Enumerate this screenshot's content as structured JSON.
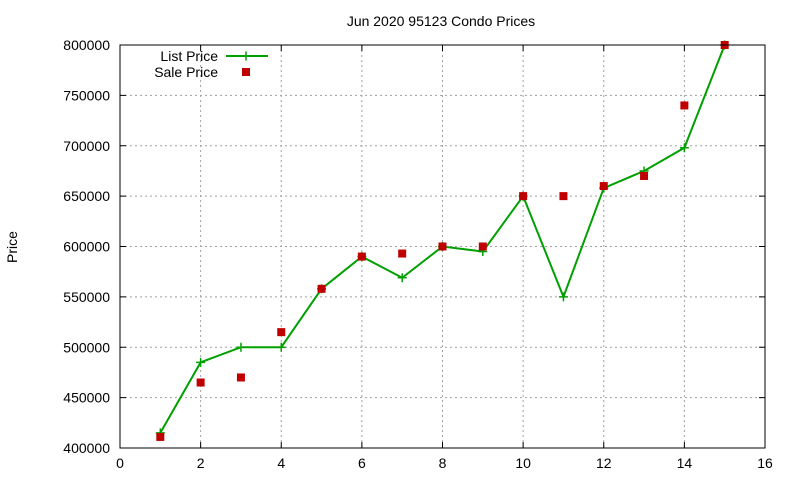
{
  "chart_data": {
    "type": "line",
    "title": "Jun 2020 95123 Condo Prices",
    "xlabel": "",
    "ylabel": "Price",
    "xlim": [
      0,
      16
    ],
    "ylim": [
      400000,
      800000
    ],
    "xticks": [
      0,
      2,
      4,
      6,
      8,
      10,
      12,
      14,
      16
    ],
    "yticks": [
      400000,
      450000,
      500000,
      550000,
      600000,
      650000,
      700000,
      750000,
      800000
    ],
    "grid": true,
    "legend_position": "top-left",
    "series": [
      {
        "name": "List Price",
        "style": "line-with-plus-markers",
        "color": "#00a000",
        "x": [
          1,
          2,
          3,
          4,
          5,
          6,
          7,
          8,
          9,
          10,
          11,
          12,
          13,
          14,
          15
        ],
        "y": [
          415000,
          485000,
          500000,
          500000,
          558000,
          590000,
          569000,
          600000,
          595000,
          650000,
          550000,
          658000,
          675000,
          698000,
          800000
        ]
      },
      {
        "name": "Sale Price",
        "style": "square-markers",
        "color": "#c00000",
        "x": [
          1,
          2,
          3,
          4,
          5,
          6,
          7,
          8,
          9,
          10,
          11,
          12,
          13,
          14,
          15
        ],
        "y": [
          411000,
          465000,
          470000,
          515000,
          558000,
          590000,
          593000,
          600000,
          600000,
          650000,
          650000,
          660000,
          670000,
          740000,
          800000
        ]
      }
    ]
  }
}
